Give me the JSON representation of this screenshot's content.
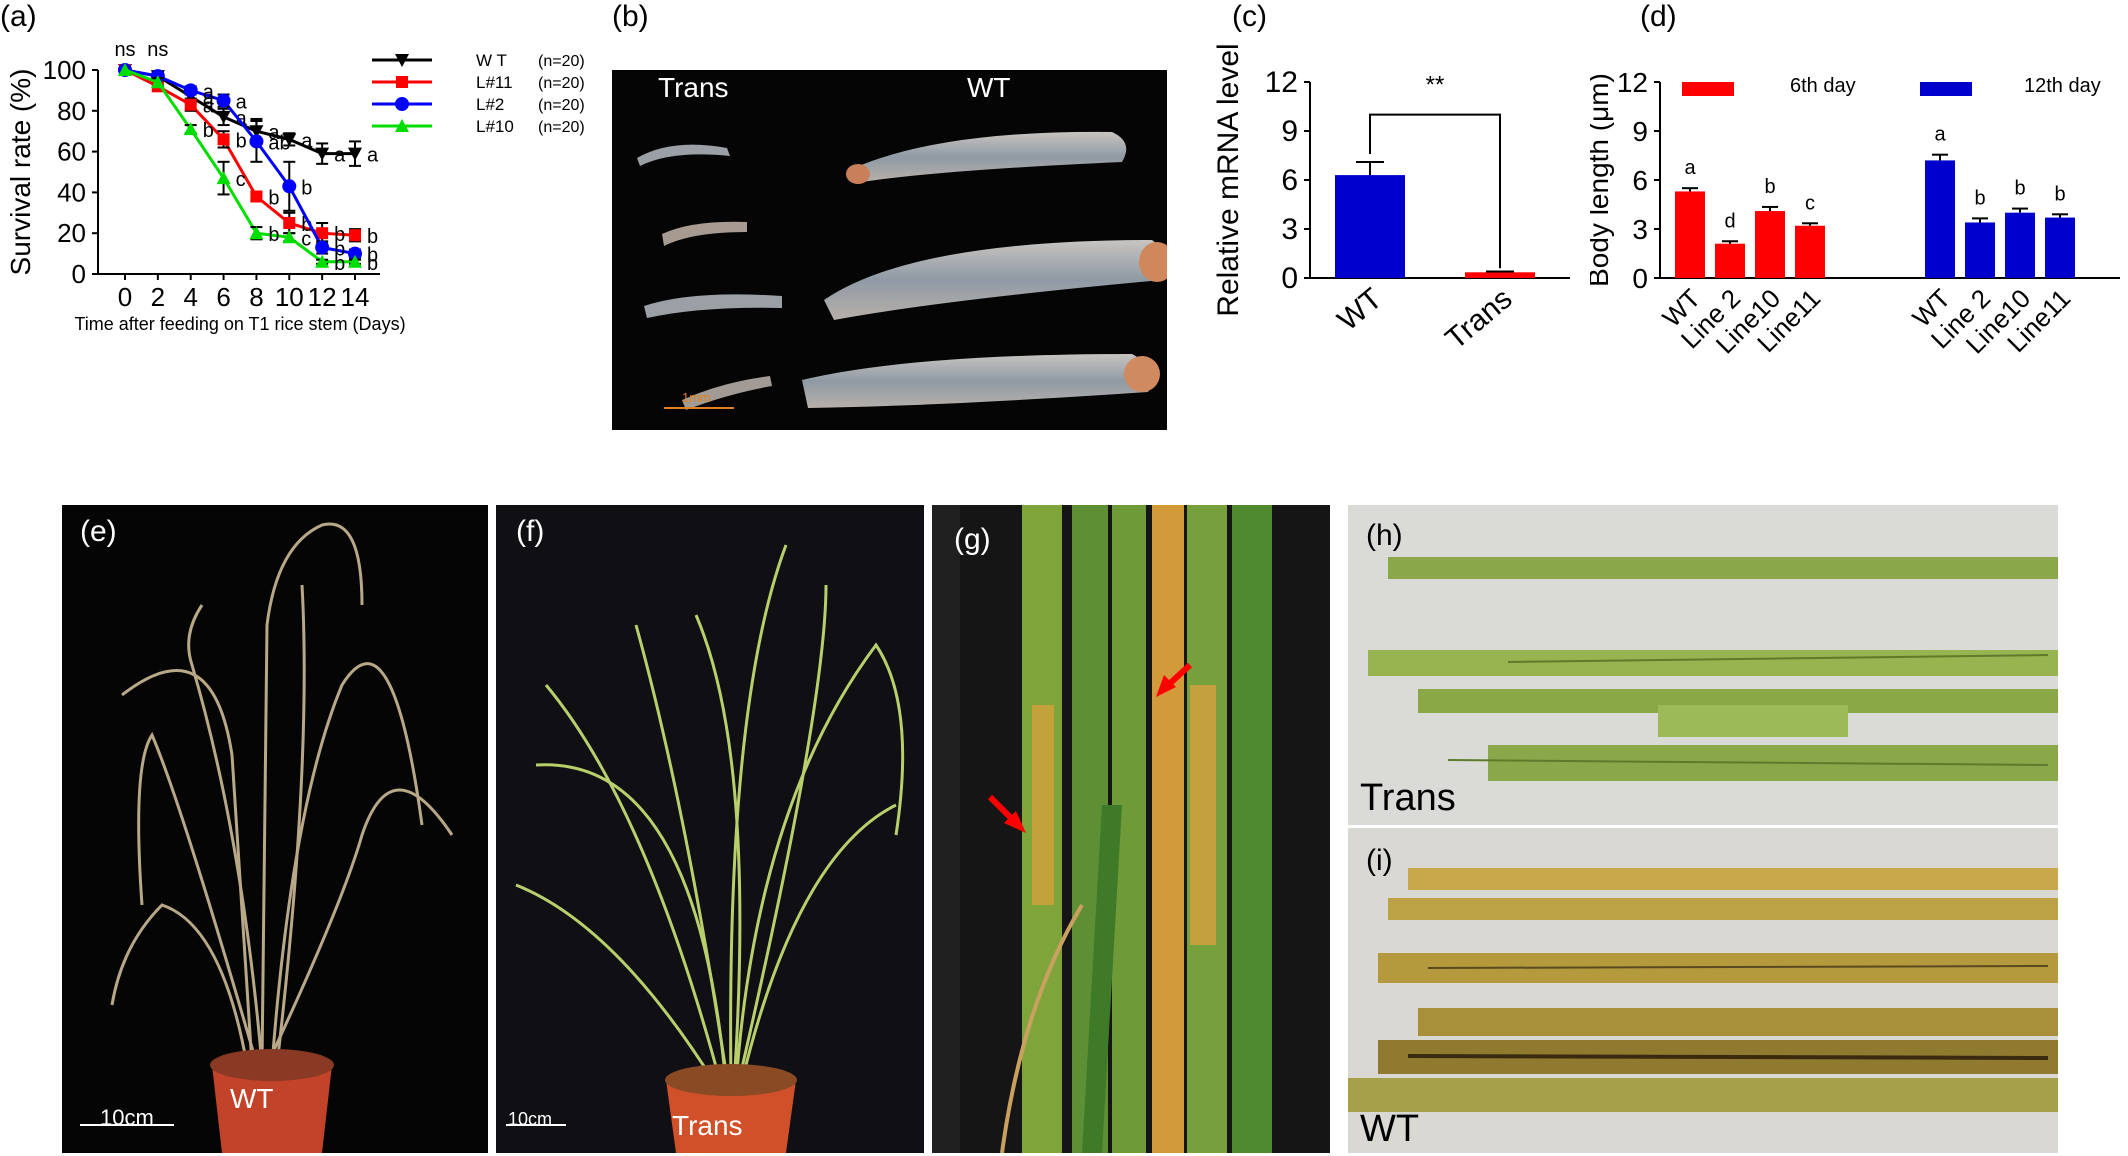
{
  "panels": {
    "a": {
      "label": "(a)"
    },
    "b": {
      "label": "(b)",
      "trans_label": "Trans",
      "wt_label": "WT",
      "scale_label": "1mm"
    },
    "c": {
      "label": "(c)"
    },
    "d": {
      "label": "(d)"
    },
    "e": {
      "label": "(e)",
      "scale_label": "10cm",
      "pot_label": "WT"
    },
    "f": {
      "label": "(f)",
      "scale_label": "10cm",
      "pot_label": "Trans"
    },
    "g": {
      "label": "(g)"
    },
    "h": {
      "label": "(h)",
      "caption": "Trans"
    },
    "i": {
      "label": "(i)",
      "caption": "WT"
    }
  },
  "colors": {
    "wt": "#000000",
    "l11": "#ff0000",
    "l2": "#0000ff",
    "l10": "#00dd00",
    "bar_blue": "#0000cc",
    "bar_red": "#ff0000",
    "arrow": "#ff0000"
  },
  "chart_data": [
    {
      "id": "a",
      "type": "line",
      "xlabel": "Time after feeding on T1 rice stem (Days)",
      "ylabel": "Survival rate (%)",
      "ylim": [
        0,
        100
      ],
      "xticks": [
        0,
        2,
        4,
        6,
        8,
        10,
        12,
        14
      ],
      "yticks": [
        0,
        20,
        40,
        60,
        80,
        100
      ],
      "top_annotations": [
        {
          "x": 0,
          "text": "ns"
        },
        {
          "x": 2,
          "text": "ns"
        }
      ],
      "series": [
        {
          "name": "W T",
          "n": "(n=20)",
          "marker": "triangle-down",
          "x": [
            0,
            2,
            4,
            6,
            8,
            10,
            12,
            14
          ],
          "y": [
            100,
            97,
            87,
            77,
            70,
            66,
            59,
            59
          ],
          "err": [
            0,
            2,
            3,
            4,
            6,
            3,
            5,
            6
          ],
          "letters": [
            null,
            null,
            "a",
            "a",
            "a",
            "a",
            "a",
            "a"
          ]
        },
        {
          "name": "L#11",
          "n": "(n=20)",
          "marker": "square",
          "x": [
            0,
            2,
            4,
            6,
            8,
            10,
            12,
            14
          ],
          "y": [
            100,
            92,
            83,
            66,
            38,
            25,
            20,
            19
          ],
          "err": [
            0,
            2,
            3,
            4,
            2,
            5,
            5,
            3
          ],
          "letters": [
            null,
            null,
            "a",
            "b",
            "b",
            "b",
            "b",
            "b"
          ]
        },
        {
          "name": "L#2",
          "n": "(n=20)",
          "marker": "circle",
          "x": [
            0,
            2,
            4,
            6,
            8,
            10,
            12,
            14
          ],
          "y": [
            100,
            97,
            90,
            85,
            65,
            43,
            13,
            10
          ],
          "err": [
            0,
            2,
            2,
            3,
            10,
            12,
            3,
            2
          ],
          "letters": [
            null,
            null,
            "a",
            "a",
            "ab",
            "b",
            "b",
            "b"
          ]
        },
        {
          "name": "L#10",
          "n": "(n=20)",
          "marker": "triangle-up",
          "x": [
            0,
            2,
            4,
            6,
            8,
            10,
            12,
            14
          ],
          "y": [
            100,
            94,
            71,
            47,
            20,
            18,
            6,
            6
          ],
          "err": [
            0,
            2,
            2,
            8,
            3,
            2,
            1,
            1
          ],
          "letters": [
            null,
            null,
            "b",
            "c",
            "b",
            "c",
            "b",
            "b"
          ]
        }
      ]
    },
    {
      "id": "c",
      "type": "bar",
      "ylabel": "Relative mRNA level",
      "ylim": [
        0,
        12
      ],
      "yticks": [
        0,
        3,
        6,
        9,
        12
      ],
      "categories": [
        "WT",
        "Trans"
      ],
      "values": [
        6.3,
        0.35
      ],
      "err": [
        0.8,
        0.05
      ],
      "significance": "**"
    },
    {
      "id": "d",
      "type": "bar",
      "ylabel": "Body length (μm)",
      "ylim": [
        0,
        12
      ],
      "yticks": [
        0,
        3,
        6,
        9,
        12
      ],
      "series": [
        {
          "name": "6th day",
          "categories": [
            "WT",
            "Line 2",
            "Line10",
            "Line11"
          ],
          "values": [
            5.3,
            2.1,
            4.1,
            3.2
          ],
          "err": [
            0.2,
            0.15,
            0.25,
            0.15
          ],
          "letters": [
            "a",
            "d",
            "b",
            "c"
          ]
        },
        {
          "name": "12th day",
          "categories": [
            "WT",
            "Line 2",
            "Line10",
            "Line11"
          ],
          "values": [
            7.2,
            3.4,
            4.0,
            3.7
          ],
          "err": [
            0.35,
            0.25,
            0.25,
            0.2
          ],
          "letters": [
            "a",
            "b",
            "b",
            "b"
          ]
        }
      ]
    }
  ]
}
